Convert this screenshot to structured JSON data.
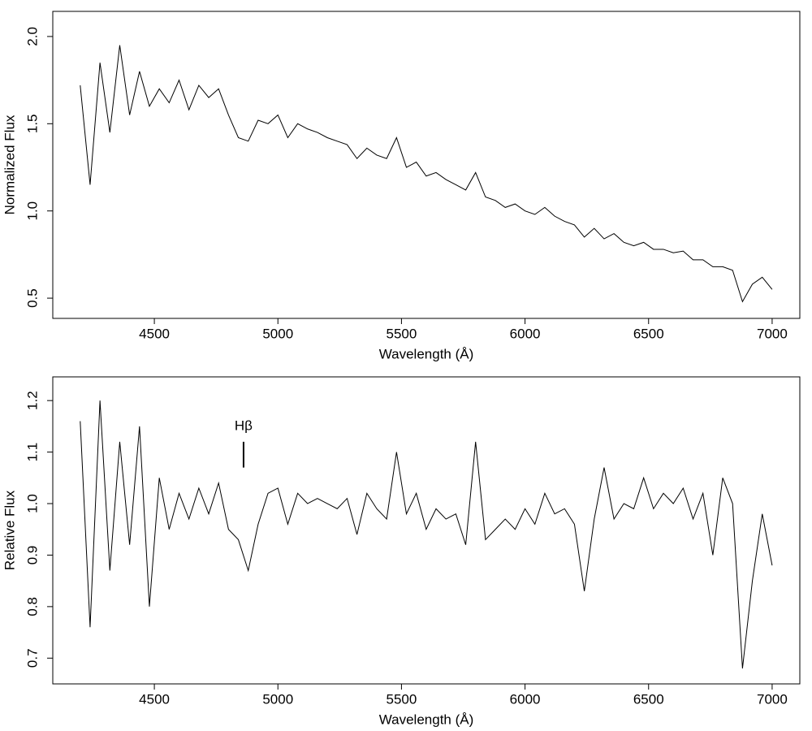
{
  "chart_data": [
    {
      "type": "line",
      "xlabel": "Wavelength (Å)",
      "ylabel": "Normalized Flux",
      "xlim": [
        4089,
        7112
      ],
      "ylim": [
        0.384,
        2.144
      ],
      "xticks": [
        4500,
        5000,
        5500,
        6000,
        6500,
        7000
      ],
      "yticks": [
        0.5,
        {
          "value": 1,
          "label": "1.0"
        },
        1.5,
        {
          "value": 2,
          "label": "2.0"
        }
      ],
      "x": [
        4200,
        4240,
        4280,
        4320,
        4360,
        4400,
        4440,
        4480,
        4520,
        4560,
        4600,
        4640,
        4680,
        4720,
        4760,
        4800,
        4840,
        4880,
        4920,
        4960,
        5000,
        5040,
        5080,
        5120,
        5160,
        5200,
        5240,
        5280,
        5320,
        5360,
        5400,
        5440,
        5480,
        5520,
        5560,
        5600,
        5640,
        5680,
        5720,
        5760,
        5800,
        5840,
        5880,
        5920,
        5960,
        6000,
        6040,
        6080,
        6120,
        6160,
        6200,
        6240,
        6280,
        6320,
        6360,
        6400,
        6440,
        6480,
        6520,
        6560,
        6600,
        6640,
        6680,
        6720,
        6760,
        6800,
        6840,
        6880,
        6920,
        6960,
        7000
      ],
      "series": [
        {
          "color": "#000000",
          "values": [
            1.72,
            1.15,
            1.85,
            1.45,
            1.95,
            1.55,
            1.8,
            1.6,
            1.7,
            1.62,
            1.75,
            1.58,
            1.72,
            1.65,
            1.7,
            1.55,
            1.42,
            1.4,
            1.52,
            1.5,
            1.55,
            1.42,
            1.5,
            1.47,
            1.45,
            1.42,
            1.4,
            1.38,
            1.3,
            1.36,
            1.32,
            1.3,
            1.42,
            1.25,
            1.28,
            1.2,
            1.22,
            1.18,
            1.15,
            1.12,
            1.22,
            1.08,
            1.06,
            1.02,
            1.04,
            1.0,
            0.98,
            1.02,
            0.97,
            0.94,
            0.92,
            0.85,
            0.9,
            0.84,
            0.87,
            0.82,
            0.8,
            0.82,
            0.78,
            0.78,
            0.76,
            0.77,
            0.72,
            0.72,
            0.68,
            0.68,
            0.66,
            0.48,
            0.58,
            0.62,
            0.55
          ]
        }
      ]
    },
    {
      "type": "line",
      "xlabel": "Wavelength (Å)",
      "ylabel": "Relative Flux",
      "xlim": [
        4089,
        7112
      ],
      "ylim": [
        0.65,
        1.246
      ],
      "xticks": [
        4500,
        5000,
        5500,
        6000,
        6500,
        7000
      ],
      "yticks": [
        0.7,
        0.8,
        0.9,
        {
          "value": 1,
          "label": "1.0"
        },
        1.1,
        1.2
      ],
      "x": [
        4200,
        4240,
        4280,
        4320,
        4360,
        4400,
        4440,
        4480,
        4520,
        4560,
        4600,
        4640,
        4680,
        4720,
        4760,
        4800,
        4840,
        4880,
        4920,
        4960,
        5000,
        5040,
        5080,
        5120,
        5160,
        5200,
        5240,
        5280,
        5320,
        5360,
        5400,
        5440,
        5480,
        5520,
        5560,
        5600,
        5640,
        5680,
        5720,
        5760,
        5800,
        5840,
        5880,
        5920,
        5960,
        6000,
        6040,
        6080,
        6120,
        6160,
        6200,
        6240,
        6280,
        6320,
        6360,
        6400,
        6440,
        6480,
        6520,
        6560,
        6600,
        6640,
        6680,
        6720,
        6760,
        6800,
        6840,
        6880,
        6920,
        6960,
        7000
      ],
      "series": [
        {
          "color": "#000000",
          "values": [
            1.16,
            0.76,
            1.2,
            0.87,
            1.12,
            0.92,
            1.15,
            0.8,
            1.05,
            0.95,
            1.02,
            0.97,
            1.03,
            0.98,
            1.04,
            0.95,
            0.93,
            0.87,
            0.96,
            1.02,
            1.03,
            0.96,
            1.02,
            1.0,
            1.01,
            1.0,
            0.99,
            1.01,
            0.94,
            1.02,
            0.99,
            0.97,
            1.1,
            0.98,
            1.02,
            0.95,
            0.99,
            0.97,
            0.98,
            0.92,
            1.12,
            0.93,
            0.95,
            0.97,
            0.95,
            0.99,
            0.96,
            1.02,
            0.98,
            0.99,
            0.96,
            0.83,
            0.97,
            1.07,
            0.97,
            1.0,
            0.99,
            1.05,
            0.99,
            1.02,
            1.0,
            1.03,
            0.97,
            1.02,
            0.9,
            1.05,
            1.0,
            0.68,
            0.85,
            0.98,
            0.88
          ]
        }
      ],
      "annotations": [
        {
          "text": "Hβ",
          "x": 4861,
          "y": [
            1.07,
            1.12
          ]
        }
      ]
    }
  ]
}
